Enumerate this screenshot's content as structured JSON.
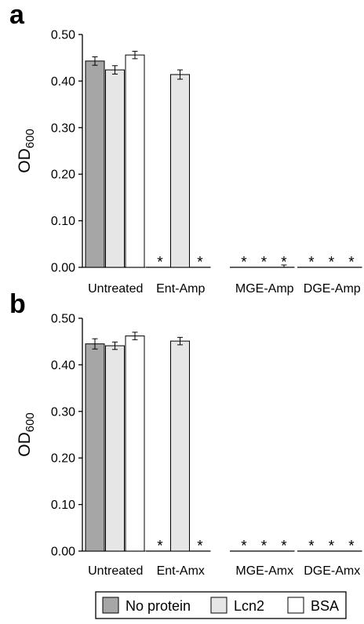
{
  "chart_data": [
    {
      "panel": "a",
      "type": "bar",
      "ylabel": "OD",
      "ylabel_sub": "600",
      "ylim": [
        0,
        0.5
      ],
      "yticks": [
        "0.00",
        "0.10",
        "0.20",
        "0.30",
        "0.40",
        "0.50"
      ],
      "categories": [
        "Untreated",
        "Ent-Amp",
        "MGE-Amp",
        "DGE-Amp"
      ],
      "series": [
        {
          "name": "No protein",
          "values": [
            0.443,
            0,
            0,
            0
          ],
          "errors": [
            0.009,
            0,
            0,
            0
          ],
          "asterisk": [
            false,
            true,
            true,
            true
          ]
        },
        {
          "name": "Lcn2",
          "values": [
            0.424,
            0.414,
            0,
            0
          ],
          "errors": [
            0.009,
            0.01,
            0,
            0
          ],
          "asterisk": [
            false,
            false,
            true,
            true
          ]
        },
        {
          "name": "BSA",
          "values": [
            0.456,
            0,
            0.002,
            0
          ],
          "errors": [
            0.008,
            0,
            0.003,
            0
          ],
          "asterisk": [
            false,
            true,
            true,
            true
          ]
        }
      ]
    },
    {
      "panel": "b",
      "type": "bar",
      "ylabel": "OD",
      "ylabel_sub": "600",
      "ylim": [
        0,
        0.5
      ],
      "yticks": [
        "0.00",
        "0.10",
        "0.20",
        "0.30",
        "0.40",
        "0.50"
      ],
      "categories": [
        "Untreated",
        "Ent-Amx",
        "MGE-Amx",
        "DGE-Amx"
      ],
      "series": [
        {
          "name": "No protein",
          "values": [
            0.445,
            0,
            0,
            0
          ],
          "errors": [
            0.011,
            0,
            0,
            0
          ],
          "asterisk": [
            false,
            true,
            true,
            true
          ]
        },
        {
          "name": "Lcn2",
          "values": [
            0.441,
            0.451,
            0,
            0
          ],
          "errors": [
            0.008,
            0.008,
            0,
            0
          ],
          "asterisk": [
            false,
            false,
            true,
            true
          ]
        },
        {
          "name": "BSA",
          "values": [
            0.462,
            0,
            0,
            0
          ],
          "errors": [
            0.008,
            0,
            0,
            0
          ],
          "asterisk": [
            false,
            true,
            true,
            true
          ]
        }
      ]
    }
  ],
  "legend": {
    "items": [
      {
        "label": "No protein",
        "color": "#a6a6a6"
      },
      {
        "label": "Lcn2",
        "color": "#e6e6e6"
      },
      {
        "label": "BSA",
        "color": "#ffffff"
      }
    ]
  },
  "asterisk_symbol": "*",
  "colors": {
    "No protein": "#a6a6a6",
    "Lcn2": "#e6e6e6",
    "BSA": "#ffffff",
    "stroke": "#000000"
  }
}
